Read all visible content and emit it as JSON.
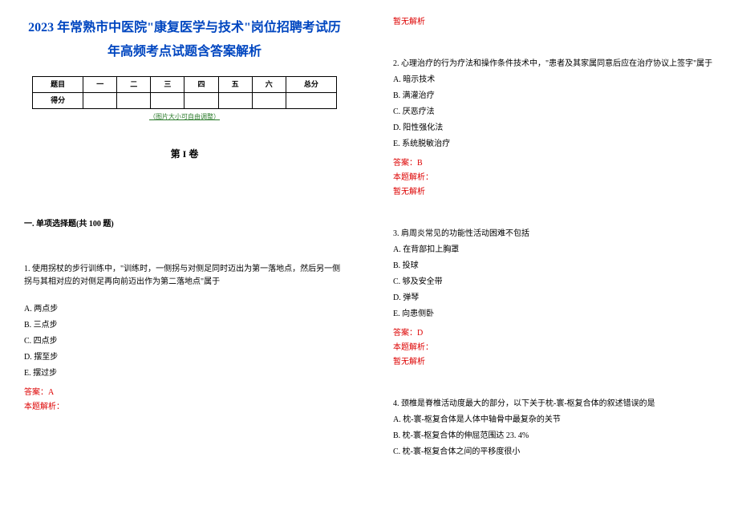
{
  "title": "2023 年常熟市中医院\"康复医学与技术\"岗位招聘考试历年高频考点试题含答案解析",
  "score_table": {
    "row1_label": "题目",
    "cols": [
      "一",
      "二",
      "三",
      "四",
      "五",
      "六",
      "总分"
    ],
    "row2_label": "得分"
  },
  "resize_note": "（图片大小可自由调整）",
  "volume_label": "第 I 卷",
  "section_heading": "一. 单项选择题(共 100 题)",
  "q1": {
    "stem": "1. 使用拐杖的步行训练中，\"训练时，一侧拐与对侧足同时迈出为第一落地点，然后另一侧拐与其相对应的对侧足再向前迈出作为第二落地点\"属于",
    "A": "A. 两点步",
    "B": "B. 三点步",
    "C": "C. 四点步",
    "D": "D. 摆至步",
    "E": "E. 摆过步",
    "answer": "答案：A",
    "analysis_label": "本题解析：",
    "no_analysis": "暂无解析"
  },
  "q2": {
    "stem": "2. 心理治疗的行为疗法和操作条件技术中，\"患者及其家属同意后应在治疗协议上签字\"属于",
    "A": "A. 暗示技术",
    "B": "B. 满灌治疗",
    "C": "C. 厌恶疗法",
    "D": "D. 阳性强化法",
    "E": "E. 系统脱敏治疗",
    "answer": "答案：B",
    "analysis_label": "本题解析：",
    "no_analysis": "暂无解析"
  },
  "q3": {
    "stem": "3. 肩周炎常见的功能性活动困难不包括",
    "A": "A. 在背部扣上胸罩",
    "B": "B. 投球",
    "C": "C. 够及安全带",
    "D": "D. 弹琴",
    "E": "E. 向患侧卧",
    "answer": "答案：D",
    "analysis_label": "本题解析：",
    "no_analysis": "暂无解析"
  },
  "q4": {
    "stem": "4. 颈椎是脊椎活动度最大的部分，以下关于枕-寰-枢复合体的叙述错误的是",
    "A": "A. 枕-寰-枢复合体是人体中轴骨中最复杂的关节",
    "B": "B. 枕-寰-枢复合体的伸屈范围达 23. 4%",
    "C": "C. 枕-寰-枢复合体之间的平移度很小"
  },
  "labels": {
    "answer_prefix": "答案：",
    "analysis_prefix": "本题解析：",
    "no_analysis": "暂无解析"
  },
  "colors": {
    "title": "#0046c0",
    "answer": "#d00000",
    "note": "#2a7a2a",
    "text": "#000000",
    "background": "#ffffff"
  },
  "fontsize": {
    "title": 16,
    "volume": 12,
    "body": 10,
    "table": 9,
    "note": 8
  }
}
